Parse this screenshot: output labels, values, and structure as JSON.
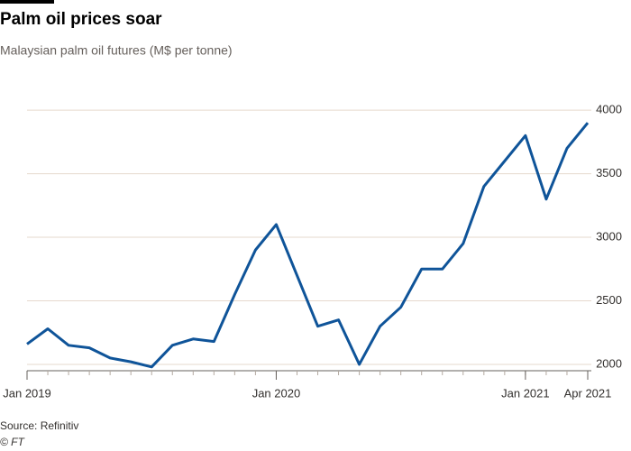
{
  "chart_data": {
    "type": "line",
    "title": "Palm oil prices soar",
    "subtitle": "Malaysian palm oil futures (M$ per tonne)",
    "source": "Source: Refinitiv",
    "credit": "© FT",
    "x": [
      "2019-01",
      "2019-02",
      "2019-03",
      "2019-04",
      "2019-05",
      "2019-06",
      "2019-07",
      "2019-08",
      "2019-09",
      "2019-10",
      "2019-11",
      "2019-12",
      "2020-01",
      "2020-02",
      "2020-03",
      "2020-04",
      "2020-05",
      "2020-06",
      "2020-07",
      "2020-08",
      "2020-09",
      "2020-10",
      "2020-11",
      "2020-12",
      "2021-01",
      "2021-02",
      "2021-03",
      "2021-04"
    ],
    "series": [
      {
        "name": "Malaysian palm oil futures",
        "color": "#0f5499",
        "values": [
          2160,
          2280,
          2150,
          2130,
          2050,
          2020,
          1980,
          2150,
          2200,
          2180,
          2550,
          2900,
          3100,
          2700,
          2300,
          2350,
          2000,
          2300,
          2450,
          2750,
          2750,
          2950,
          3400,
          3600,
          3800,
          3300,
          3700,
          3900
        ]
      }
    ],
    "xlim": [
      "2019-01",
      "2021-04"
    ],
    "xticks": [
      {
        "value": "2019-01",
        "label": "Jan 2019"
      },
      {
        "value": "2020-01",
        "label": "Jan 2020"
      },
      {
        "value": "2021-01",
        "label": "Jan 2021"
      },
      {
        "value": "2021-04",
        "label": "Apr 2021"
      }
    ],
    "ylim": [
      1950,
      4150
    ],
    "yticks": [
      2000,
      2500,
      3000,
      3500,
      4000
    ],
    "grid": true
  }
}
